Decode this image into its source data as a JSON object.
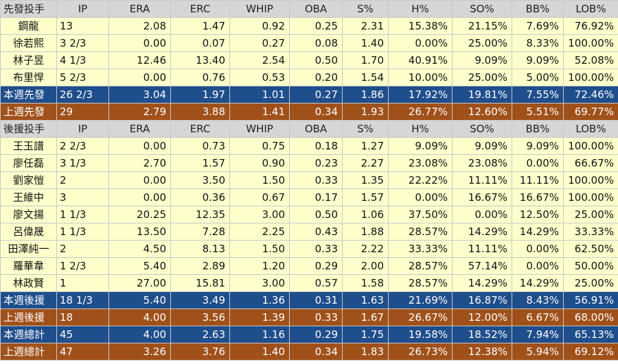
{
  "headers": {
    "starters": [
      "先發投手",
      "IP",
      "ERA",
      "ERC",
      "WHIP",
      "OBA",
      "S%",
      "H%",
      "SO%",
      "BB%",
      "LOB%"
    ],
    "relievers": [
      "後援投手",
      "IP",
      "ERA",
      "ERC",
      "WHIP",
      "OBA",
      "S%",
      "H%",
      "SO%",
      "BB%",
      "LOB%"
    ]
  },
  "starters": [
    [
      "鋼龍",
      "13",
      "2.08",
      "1.47",
      "0.92",
      "0.25",
      "2.31",
      "15.38%",
      "21.15%",
      "7.69%",
      "76.92%"
    ],
    [
      "徐若熙",
      "3 2/3",
      "0.00",
      "0.07",
      "0.27",
      "0.08",
      "1.40",
      "0.00%",
      "25.00%",
      "8.33%",
      "100.00%"
    ],
    [
      "林子昱",
      "4 1/3",
      "12.46",
      "13.40",
      "2.54",
      "0.50",
      "1.70",
      "40.91%",
      "9.09%",
      "9.09%",
      "52.08%"
    ],
    [
      "布里悍",
      "5 2/3",
      "0.00",
      "0.76",
      "0.53",
      "0.20",
      "1.54",
      "10.00%",
      "25.00%",
      "5.00%",
      "100.00%"
    ]
  ],
  "starters_this_week": [
    "本週先發",
    "26 2/3",
    "3.04",
    "1.97",
    "1.01",
    "0.27",
    "1.86",
    "17.92%",
    "19.81%",
    "7.55%",
    "72.46%"
  ],
  "starters_last_week": [
    "上週先發",
    "29",
    "2.79",
    "3.88",
    "1.41",
    "0.34",
    "1.93",
    "26.77%",
    "12.60%",
    "5.51%",
    "69.77%"
  ],
  "relievers": [
    [
      "王玉譜",
      "2 2/3",
      "0.00",
      "0.73",
      "0.75",
      "0.18",
      "1.27",
      "9.09%",
      "9.09%",
      "9.09%",
      "100.00%"
    ],
    [
      "廖任磊",
      "3 1/3",
      "2.70",
      "1.57",
      "0.90",
      "0.23",
      "2.27",
      "23.08%",
      "23.08%",
      "0.00%",
      "66.67%"
    ],
    [
      "劉家愷",
      "2",
      "0.00",
      "3.50",
      "1.50",
      "0.33",
      "1.35",
      "22.22%",
      "11.11%",
      "11.11%",
      "100.00%"
    ],
    [
      "王維中",
      "3",
      "0.00",
      "0.36",
      "0.67",
      "0.17",
      "1.57",
      "0.00%",
      "16.67%",
      "16.67%",
      "100.00%"
    ],
    [
      "廖文揚",
      "1 1/3",
      "20.25",
      "12.35",
      "3.00",
      "0.50",
      "1.06",
      "37.50%",
      "0.00%",
      "12.50%",
      "25.00%"
    ],
    [
      "呂偉晟",
      "1 1/3",
      "13.50",
      "7.28",
      "2.25",
      "0.43",
      "1.88",
      "28.57%",
      "14.29%",
      "14.29%",
      "33.33%"
    ],
    [
      "田澤純一",
      "2",
      "4.50",
      "8.13",
      "1.50",
      "0.33",
      "2.22",
      "33.33%",
      "11.11%",
      "0.00%",
      "62.50%"
    ],
    [
      "羅華韋",
      "1 2/3",
      "5.40",
      "2.89",
      "1.20",
      "0.29",
      "2.00",
      "28.57%",
      "57.14%",
      "0.00%",
      "50.00%"
    ],
    [
      "林政賢",
      "1",
      "27.00",
      "15.81",
      "3.00",
      "0.57",
      "1.58",
      "28.57%",
      "14.29%",
      "14.29%",
      "25.00%"
    ]
  ],
  "relievers_this_week": [
    "本週後援",
    "18 1/3",
    "5.40",
    "3.49",
    "1.36",
    "0.31",
    "1.63",
    "21.69%",
    "16.87%",
    "8.43%",
    "56.91%"
  ],
  "relievers_last_week": [
    "上週後援",
    "18",
    "4.00",
    "3.56",
    "1.39",
    "0.33",
    "1.67",
    "26.67%",
    "12.00%",
    "6.67%",
    "68.00%"
  ],
  "total_this_week": [
    "本週總計",
    "45",
    "4.00",
    "2.63",
    "1.16",
    "0.29",
    "1.75",
    "19.58%",
    "18.52%",
    "7.94%",
    "65.13%"
  ],
  "total_last_week": [
    "上週總計",
    "47",
    "3.26",
    "3.76",
    "1.40",
    "0.34",
    "1.83",
    "26.73%",
    "12.38%",
    "5.94%",
    "69.12%"
  ],
  "colors": {
    "header_bg": "#d6d6d6",
    "row_bg": "#ffffcc",
    "this_week_bg": "#1f4e8c",
    "last_week_bg": "#a0511a"
  }
}
